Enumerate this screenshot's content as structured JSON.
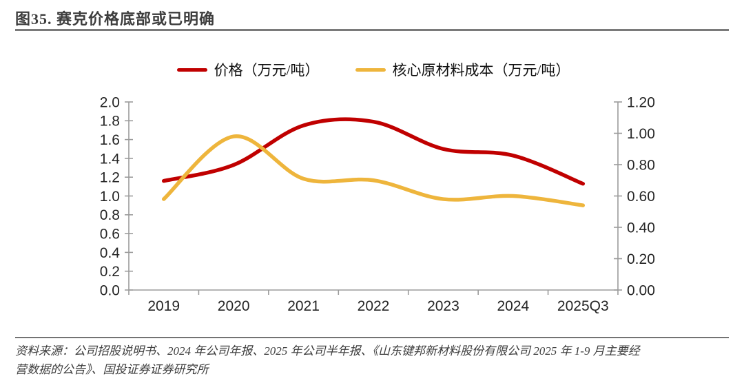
{
  "header": {
    "title": "图35. 赛克价格底部或已明确"
  },
  "chart_data": {
    "type": "line",
    "smooth": true,
    "categories": [
      "2019",
      "2020",
      "2021",
      "2022",
      "2023",
      "2024",
      "2025Q3"
    ],
    "series": [
      {
        "name": "价格（万元/吨）",
        "axis": "left",
        "color": "#C00000",
        "values": [
          1.16,
          1.33,
          1.75,
          1.79,
          1.5,
          1.43,
          1.13
        ]
      },
      {
        "name": "核心原材料成本（万元/吨）",
        "axis": "right",
        "color": "#EEB53C",
        "values": [
          0.58,
          0.98,
          0.71,
          0.7,
          0.58,
          0.6,
          0.54
        ]
      }
    ],
    "left_axis": {
      "min": 0.0,
      "max": 2.0,
      "ticks": [
        "2.0",
        "1.8",
        "1.6",
        "1.4",
        "1.2",
        "1.0",
        "0.8",
        "0.6",
        "0.4",
        "0.2",
        "0.0"
      ]
    },
    "right_axis": {
      "min": 0.0,
      "max": 1.2,
      "ticks": [
        "1.20",
        "1.00",
        "0.80",
        "0.60",
        "0.40",
        "0.20",
        "0.00"
      ]
    },
    "grid": false,
    "legend_position": "top"
  },
  "footer": {
    "lines": [
      "资料来源：公司招股说明书、2024 年公司年报、2025 年公司半年报、《山东键邦新材料股份有限公司 2025 年 1-9 月主要经",
      "营数据的公告》、国投证券证券研究所"
    ]
  },
  "colors": {
    "price_line": "#C00000",
    "cost_line": "#EEB53C",
    "axis_line": "#9b9b9b",
    "tick_label": "#262626",
    "title_text": "#3d3d3d",
    "rule": "#737373"
  }
}
